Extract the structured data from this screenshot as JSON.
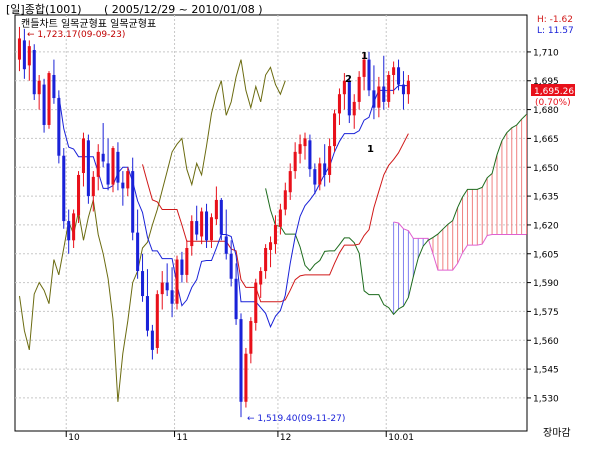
{
  "header": {
    "symbol": "[일]종합(1001)",
    "range": "( 2005/12/29 ~ 2010/01/08 )",
    "subtitle": "캔들차트 일목균형표 일목균형표",
    "high_low_badge": {
      "high": "H: -1.62",
      "low": "L: 11.57"
    }
  },
  "colors": {
    "up": "#e8101a",
    "down": "#1a22d8",
    "tenkan": "#1a22d8",
    "kijun": "#d01818",
    "chikou": "#6b6b10",
    "span_a": "#1d6b1d",
    "span_b": "#e060d0",
    "cloud_bull": "#f08080",
    "cloud_bear": "#8080f0",
    "annotation_max": "#c00000",
    "annotation_min": "#1a22d8",
    "grid": "#c8c8c8"
  },
  "current": {
    "price": "1,695.26",
    "change": "(0.70%)"
  },
  "annotations": {
    "max": "← 1,723.17(09-09-23)",
    "min": "← 1,519.40(09-11-27)",
    "wave_marks": [
      "1",
      "2",
      "1"
    ]
  },
  "footer": {
    "label": "장마감"
  },
  "chart_data": {
    "type": "candlestick",
    "yticks": [
      1530,
      1545,
      1560,
      1575,
      1590,
      1605,
      1620,
      1635,
      1650,
      1665,
      1680,
      1695,
      1710
    ],
    "ytick_labels": [
      "1,530",
      "1,545",
      "1,560",
      "1,575",
      "1,590",
      "1,605",
      "1,620",
      "1,635",
      "1,650",
      "1,665",
      "1,680",
      "1,695",
      "1,710"
    ],
    "ylim": [
      1518,
      1724
    ],
    "month_labels": [
      {
        "label": "10",
        "at": 10
      },
      {
        "label": "11",
        "at": 32
      },
      {
        "label": "12",
        "at": 53
      },
      {
        "label": "10.01",
        "at": 75
      }
    ],
    "total_slots": 104,
    "price_count": 80,
    "candles": [
      [
        1706,
        1723,
        1700,
        1717
      ],
      [
        1716,
        1722,
        1696,
        1701
      ],
      [
        1703,
        1716,
        1695,
        1713
      ],
      [
        1711,
        1714,
        1685,
        1688
      ],
      [
        1688,
        1698,
        1680,
        1695
      ],
      [
        1693,
        1696,
        1668,
        1672
      ],
      [
        1672,
        1700,
        1670,
        1699
      ],
      [
        1698,
        1706,
        1683,
        1686
      ],
      [
        1686,
        1690,
        1652,
        1656
      ],
      [
        1656,
        1660,
        1618,
        1622
      ],
      [
        1622,
        1628,
        1605,
        1612
      ],
      [
        1612,
        1628,
        1608,
        1626
      ],
      [
        1625,
        1648,
        1621,
        1646
      ],
      [
        1647,
        1668,
        1640,
        1665
      ],
      [
        1664,
        1667,
        1631,
        1635
      ],
      [
        1635,
        1648,
        1627,
        1645
      ],
      [
        1645,
        1662,
        1638,
        1658
      ],
      [
        1657,
        1673,
        1650,
        1653
      ],
      [
        1652,
        1665,
        1638,
        1641
      ],
      [
        1641,
        1661,
        1637,
        1660
      ],
      [
        1658,
        1663,
        1638,
        1642
      ],
      [
        1642,
        1648,
        1630,
        1639
      ],
      [
        1639,
        1650,
        1635,
        1648
      ],
      [
        1648,
        1655,
        1612,
        1616
      ],
      [
        1616,
        1628,
        1592,
        1596
      ],
      [
        1596,
        1605,
        1580,
        1583
      ],
      [
        1583,
        1597,
        1562,
        1565
      ],
      [
        1565,
        1568,
        1550,
        1555
      ],
      [
        1556,
        1586,
        1553,
        1584
      ],
      [
        1584,
        1596,
        1576,
        1590
      ],
      [
        1590,
        1600,
        1583,
        1586
      ],
      [
        1586,
        1598,
        1572,
        1579
      ],
      [
        1579,
        1604,
        1576,
        1602
      ],
      [
        1602,
        1606,
        1590,
        1594
      ],
      [
        1594,
        1612,
        1590,
        1608
      ],
      [
        1609,
        1625,
        1604,
        1622
      ],
      [
        1622,
        1630,
        1612,
        1615
      ],
      [
        1614,
        1629,
        1610,
        1627
      ],
      [
        1627,
        1631,
        1608,
        1612
      ],
      [
        1612,
        1626,
        1608,
        1624
      ],
      [
        1623,
        1640,
        1620,
        1633
      ],
      [
        1633,
        1634,
        1612,
        1615
      ],
      [
        1614,
        1628,
        1602,
        1605
      ],
      [
        1605,
        1612,
        1588,
        1592
      ],
      [
        1592,
        1600,
        1568,
        1571
      ],
      [
        1571,
        1574,
        1520,
        1528
      ],
      [
        1528,
        1556,
        1525,
        1553
      ],
      [
        1553,
        1572,
        1548,
        1570
      ],
      [
        1569,
        1592,
        1565,
        1590
      ],
      [
        1589,
        1598,
        1582,
        1596
      ],
      [
        1596,
        1610,
        1592,
        1608
      ],
      [
        1607,
        1614,
        1598,
        1611
      ],
      [
        1610,
        1625,
        1605,
        1620
      ],
      [
        1619,
        1631,
        1615,
        1628
      ],
      [
        1628,
        1642,
        1625,
        1638
      ],
      [
        1637,
        1652,
        1633,
        1648
      ],
      [
        1648,
        1663,
        1644,
        1658
      ],
      [
        1657,
        1667,
        1652,
        1662
      ],
      [
        1661,
        1668,
        1654,
        1665
      ],
      [
        1664,
        1667,
        1645,
        1649
      ],
      [
        1649,
        1652,
        1636,
        1641
      ],
      [
        1641,
        1655,
        1638,
        1652
      ],
      [
        1652,
        1662,
        1640,
        1646
      ],
      [
        1646,
        1665,
        1642,
        1661
      ],
      [
        1661,
        1680,
        1658,
        1678
      ],
      [
        1678,
        1691,
        1672,
        1688
      ],
      [
        1688,
        1699,
        1680,
        1695
      ],
      [
        1695,
        1697,
        1673,
        1677
      ],
      [
        1677,
        1688,
        1670,
        1684
      ],
      [
        1684,
        1700,
        1680,
        1697
      ],
      [
        1697,
        1709,
        1690,
        1706
      ],
      [
        1706,
        1710,
        1687,
        1690
      ],
      [
        1690,
        1703,
        1675,
        1681
      ],
      [
        1681,
        1697,
        1676,
        1692
      ],
      [
        1692,
        1708,
        1680,
        1684
      ],
      [
        1684,
        1700,
        1681,
        1698
      ],
      [
        1698,
        1705,
        1688,
        1702
      ],
      [
        1702,
        1706,
        1690,
        1693
      ],
      [
        1693,
        1700,
        1680,
        1688
      ],
      [
        1688,
        1698,
        1683,
        1695
      ]
    ]
  }
}
